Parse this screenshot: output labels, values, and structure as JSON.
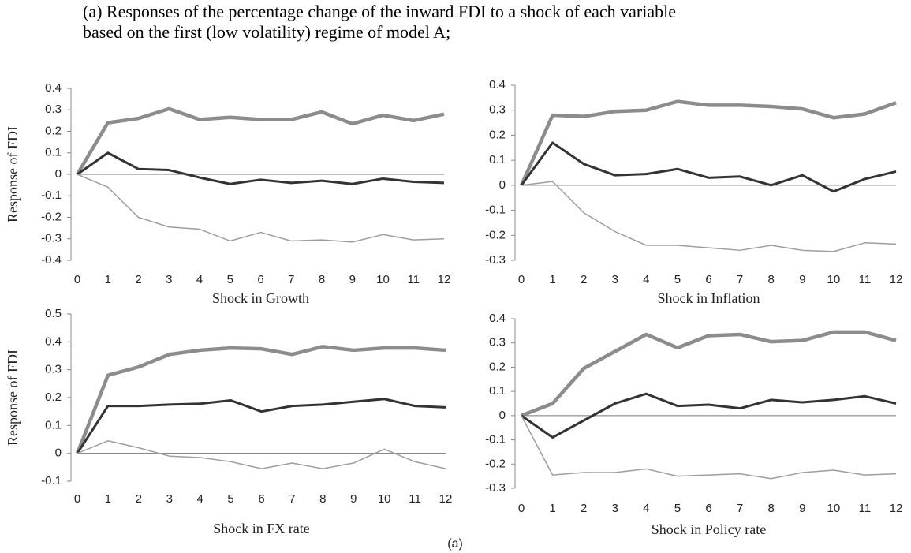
{
  "caption": [
    "(a) Responses of the percentage change of the inward FDI to a shock of each variable",
    "based on the first (low volatility) regime of model A;"
  ],
  "figure_label": "(a)",
  "chart_data": [
    {
      "type": "line",
      "ylabel": "Response of FDI",
      "xlabel": "Shock in Growth",
      "x": [
        0,
        1,
        2,
        3,
        4,
        5,
        6,
        7,
        8,
        9,
        10,
        11,
        12
      ],
      "xlim": [
        0,
        12
      ],
      "xticks": [
        0,
        1,
        2,
        3,
        4,
        5,
        6,
        7,
        8,
        9,
        10,
        11,
        12
      ],
      "ylim": [
        -0.4,
        0.4
      ],
      "yticks": [
        -0.4,
        -0.3,
        -0.2,
        -0.1,
        0,
        0.1,
        0.2,
        0.3,
        0.4
      ],
      "series": [
        {
          "color": "#8c8c8c",
          "values": [
            0,
            0.24,
            0.26,
            0.305,
            0.255,
            0.265,
            0.255,
            0.255,
            0.29,
            0.235,
            0.275,
            0.25,
            0.28
          ]
        },
        {
          "color": "#333333",
          "values": [
            0,
            0.1,
            0.025,
            0.02,
            -0.015,
            -0.045,
            -0.025,
            -0.04,
            -0.03,
            -0.045,
            -0.02,
            -0.035,
            -0.04
          ]
        },
        {
          "color": "#9e9e9e",
          "values": [
            0,
            -0.06,
            -0.2,
            -0.245,
            -0.255,
            -0.31,
            -0.27,
            -0.31,
            -0.305,
            -0.315,
            -0.28,
            -0.305,
            -0.3
          ]
        }
      ]
    },
    {
      "type": "line",
      "xlabel": "Shock in Inflation",
      "x": [
        0,
        1,
        2,
        3,
        4,
        5,
        6,
        7,
        8,
        9,
        10,
        11,
        12
      ],
      "xlim": [
        0,
        12
      ],
      "xticks": [
        0,
        1,
        2,
        3,
        4,
        5,
        6,
        7,
        8,
        9,
        10,
        11,
        12
      ],
      "ylim": [
        -0.3,
        0.4
      ],
      "yticks": [
        -0.3,
        -0.2,
        -0.1,
        0,
        0.1,
        0.2,
        0.3,
        0.4
      ],
      "series": [
        {
          "color": "#8c8c8c",
          "values": [
            0,
            0.28,
            0.275,
            0.295,
            0.3,
            0.335,
            0.32,
            0.32,
            0.315,
            0.305,
            0.27,
            0.285,
            0.33
          ]
        },
        {
          "color": "#333333",
          "values": [
            0,
            0.17,
            0.085,
            0.04,
            0.045,
            0.065,
            0.03,
            0.035,
            0.0,
            0.04,
            -0.025,
            0.025,
            0.055
          ]
        },
        {
          "color": "#9e9e9e",
          "values": [
            0,
            0.015,
            -0.11,
            -0.185,
            -0.24,
            -0.24,
            -0.25,
            -0.26,
            -0.24,
            -0.26,
            -0.265,
            -0.23,
            -0.235
          ]
        }
      ]
    },
    {
      "type": "line",
      "ylabel": "Response of FDI",
      "xlabel": "Shock in FX rate",
      "x": [
        0,
        1,
        2,
        3,
        4,
        5,
        6,
        7,
        8,
        9,
        10,
        11,
        12
      ],
      "xlim": [
        0,
        12
      ],
      "xticks": [
        0,
        1,
        2,
        3,
        4,
        5,
        6,
        7,
        8,
        9,
        10,
        11,
        12
      ],
      "ylim": [
        -0.1,
        0.5
      ],
      "yticks": [
        -0.1,
        0,
        0.1,
        0.2,
        0.3,
        0.4,
        0.5
      ],
      "series": [
        {
          "color": "#8c8c8c",
          "values": [
            0,
            0.28,
            0.31,
            0.355,
            0.37,
            0.378,
            0.375,
            0.355,
            0.383,
            0.37,
            0.378,
            0.378,
            0.37
          ]
        },
        {
          "color": "#333333",
          "values": [
            0,
            0.17,
            0.17,
            0.175,
            0.178,
            0.19,
            0.15,
            0.17,
            0.175,
            0.185,
            0.195,
            0.17,
            0.165
          ]
        },
        {
          "color": "#9e9e9e",
          "values": [
            0,
            0.045,
            0.02,
            -0.01,
            -0.015,
            -0.03,
            -0.055,
            -0.035,
            -0.055,
            -0.035,
            0.015,
            -0.03,
            -0.055
          ]
        }
      ]
    },
    {
      "type": "line",
      "xlabel": "Shock in Policy rate",
      "x": [
        0,
        1,
        2,
        3,
        4,
        5,
        6,
        7,
        8,
        9,
        10,
        11,
        12
      ],
      "xlim": [
        0,
        12
      ],
      "xticks": [
        0,
        1,
        2,
        3,
        4,
        5,
        6,
        7,
        8,
        9,
        10,
        11,
        12
      ],
      "ylim": [
        -0.3,
        0.4
      ],
      "yticks": [
        -0.3,
        -0.2,
        -0.1,
        0,
        0.1,
        0.2,
        0.3,
        0.4
      ],
      "series": [
        {
          "color": "#8c8c8c",
          "values": [
            0,
            0.05,
            0.195,
            0.265,
            0.335,
            0.28,
            0.33,
            0.335,
            0.305,
            0.31,
            0.345,
            0.345,
            0.31
          ]
        },
        {
          "color": "#333333",
          "values": [
            0,
            -0.09,
            -0.02,
            0.05,
            0.09,
            0.04,
            0.045,
            0.03,
            0.065,
            0.055,
            0.065,
            0.08,
            0.05
          ]
        },
        {
          "color": "#9e9e9e",
          "values": [
            0,
            -0.245,
            -0.235,
            -0.235,
            -0.22,
            -0.25,
            -0.245,
            -0.24,
            -0.26,
            -0.235,
            -0.225,
            -0.245,
            -0.24
          ]
        }
      ]
    }
  ]
}
